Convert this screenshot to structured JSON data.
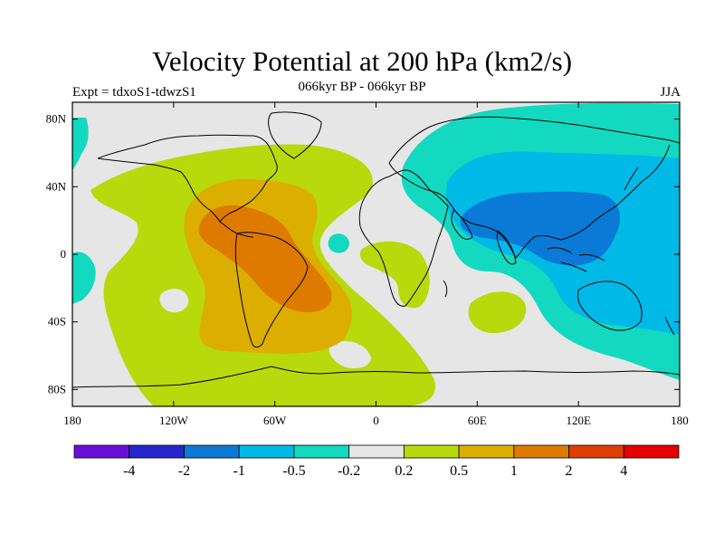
{
  "title": "Velocity Potential at 200 hPa (km2/s)",
  "subtitle": "066kyr BP - 066kyr BP",
  "left_label": "Expt = tdxoS1-tdwzS1",
  "right_label": "JJA",
  "map": {
    "lon_range": [
      -180,
      180
    ],
    "lat_range": [
      -90,
      90
    ],
    "lon_ticks": [
      {
        "lon": -180,
        "label": "180"
      },
      {
        "lon": -120,
        "label": "120W"
      },
      {
        "lon": -60,
        "label": "60W"
      },
      {
        "lon": 0,
        "label": "0"
      },
      {
        "lon": 60,
        "label": "60E"
      },
      {
        "lon": 120,
        "label": "120E"
      },
      {
        "lon": 180,
        "label": "180"
      }
    ],
    "lat_ticks": [
      {
        "lat": 80,
        "label": "80N"
      },
      {
        "lat": 40,
        "label": "40N"
      },
      {
        "lat": 0,
        "label": "0"
      },
      {
        "lat": -40,
        "label": "40S"
      },
      {
        "lat": -80,
        "label": "80S"
      }
    ],
    "background_color": "#e6e6e6",
    "coast_color": "#000000"
  },
  "colorbar": {
    "colors": [
      "#6a0fd8",
      "#2626cc",
      "#0a7ad6",
      "#00b9e6",
      "#12d9bf",
      "#e6e6e6",
      "#b8d90c",
      "#dbae00",
      "#de7a00",
      "#de3f00",
      "#e60000"
    ],
    "labels": [
      "-4",
      "-2",
      "-1",
      "-0.5",
      "-0.2",
      "0.2",
      "0.5",
      "1",
      "2",
      "4"
    ]
  }
}
